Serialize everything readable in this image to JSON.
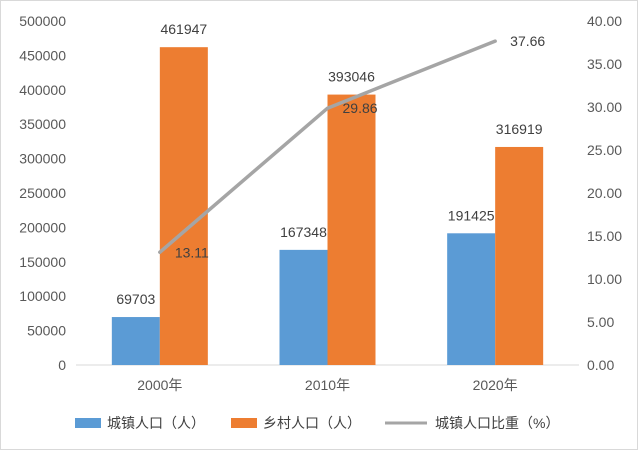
{
  "chart_data": {
    "type": "bar",
    "categories": [
      "2000年",
      "2010年",
      "2020年"
    ],
    "series": [
      {
        "name": "城镇人口（人）",
        "kind": "bar",
        "axis": "left",
        "color": "#5b9bd5",
        "values": [
          69703,
          167348,
          191425
        ]
      },
      {
        "name": "乡村人口（人）",
        "kind": "bar",
        "axis": "left",
        "color": "#ed7d31",
        "values": [
          461947,
          393046,
          316919
        ]
      },
      {
        "name": "城镇人口比重（%）",
        "kind": "line",
        "axis": "right",
        "color": "#a5a5a5",
        "values": [
          13.11,
          29.86,
          37.66
        ]
      }
    ],
    "data_labels": {
      "left": [
        "69703",
        "167348",
        "191425",
        "461947",
        "393046",
        "316919"
      ],
      "right": [
        "13.11",
        "29.86",
        "37.66"
      ]
    },
    "y_left": {
      "ylim": [
        0,
        500000
      ],
      "ticks": [
        "0",
        "50000",
        "100000",
        "150000",
        "200000",
        "250000",
        "300000",
        "350000",
        "400000",
        "450000",
        "500000"
      ]
    },
    "y_right": {
      "ylim": [
        0,
        40
      ],
      "ticks": [
        "0.00",
        "5.00",
        "10.00",
        "15.00",
        "20.00",
        "25.00",
        "30.00",
        "35.00",
        "40.00"
      ]
    },
    "title": "",
    "xlabel": "",
    "ylabel": "",
    "grid": false,
    "legend_position": "bottom"
  }
}
